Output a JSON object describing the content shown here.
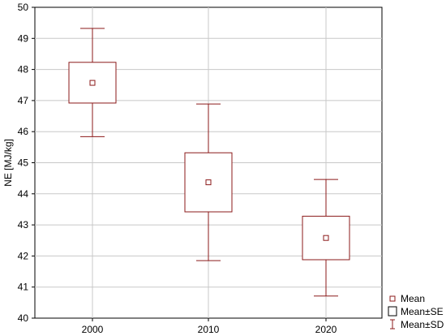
{
  "chart_data": {
    "type": "box",
    "title": "",
    "xlabel": "",
    "ylabel": "NE [MJ/kg]",
    "ylim": [
      40,
      50
    ],
    "yticks": [
      40,
      41,
      42,
      43,
      44,
      45,
      46,
      47,
      48,
      49,
      50
    ],
    "categories": [
      "2000",
      "2010",
      "2020"
    ],
    "boxes": [
      {
        "category": "2000",
        "mean": 47.57,
        "se_low": 46.92,
        "se_high": 48.23,
        "sd_low": 45.84,
        "sd_high": 49.32
      },
      {
        "category": "2010",
        "mean": 44.37,
        "se_low": 43.42,
        "se_high": 45.32,
        "sd_low": 41.85,
        "sd_high": 46.89
      },
      {
        "category": "2020",
        "mean": 42.58,
        "se_low": 41.88,
        "se_high": 43.28,
        "sd_low": 40.71,
        "sd_high": 44.46
      }
    ],
    "legend": {
      "placement": "bottom-right",
      "items": [
        {
          "symbol": "mean",
          "label": "Mean"
        },
        {
          "symbol": "se",
          "label": "Mean±SE"
        },
        {
          "symbol": "sd",
          "label": "Mean±SD"
        }
      ]
    },
    "grid": true,
    "colors": {
      "series": "#8b1a1a",
      "grid": "#c8c8c8",
      "axis": "#000000"
    }
  }
}
